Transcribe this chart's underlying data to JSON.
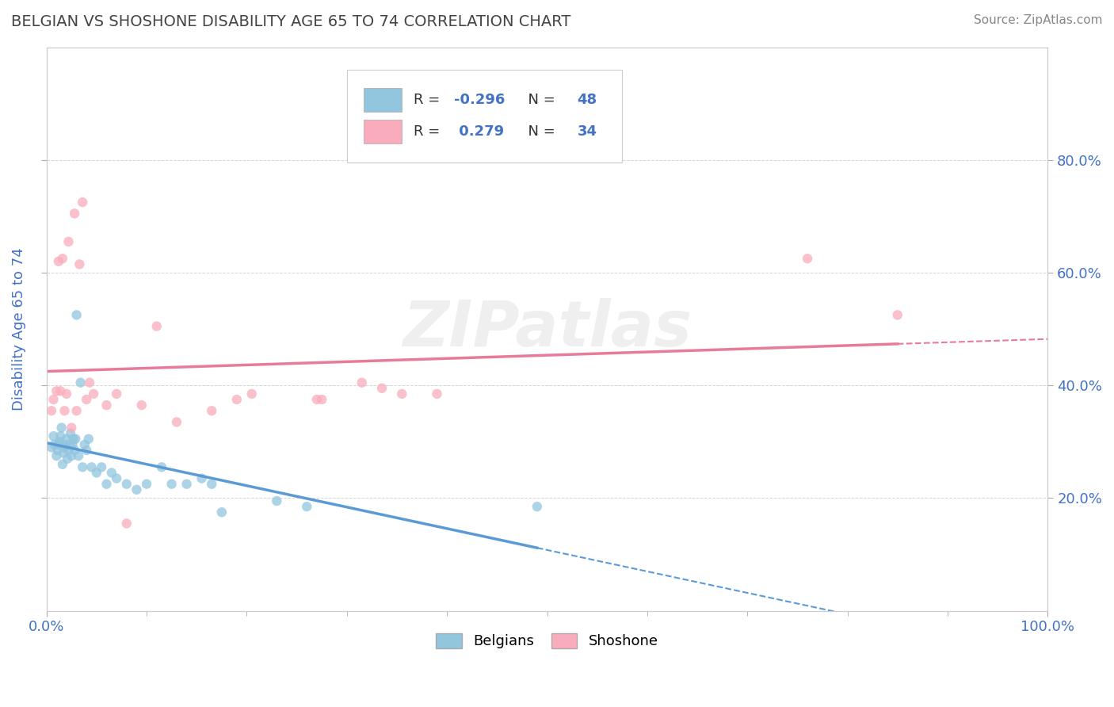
{
  "title": "BELGIAN VS SHOSHONE DISABILITY AGE 65 TO 74 CORRELATION CHART",
  "source_text": "Source: ZipAtlas.com",
  "ylabel": "Disability Age 65 to 74",
  "legend_label1": "Belgians",
  "legend_label2": "Shoshone",
  "color_belgian": "#92C5DE",
  "color_shoshone": "#F9ACBB",
  "color_belgian_line": "#5B9BD5",
  "color_shoshone_line": "#E87B9A",
  "xlim": [
    0.0,
    1.0
  ],
  "ylim": [
    0.0,
    1.0
  ],
  "y_ticks": [
    0.2,
    0.4,
    0.6,
    0.8
  ],
  "y_tick_labels": [
    "20.0%",
    "40.0%",
    "60.0%",
    "80.0%"
  ],
  "x_ticks": [
    0.0,
    1.0
  ],
  "x_tick_labels": [
    "0.0%",
    "100.0%"
  ],
  "belgian_x": [
    0.005,
    0.007,
    0.008,
    0.01,
    0.011,
    0.012,
    0.013,
    0.014,
    0.015,
    0.016,
    0.017,
    0.018,
    0.019,
    0.02,
    0.021,
    0.022,
    0.023,
    0.024,
    0.025,
    0.026,
    0.027,
    0.028,
    0.029,
    0.03,
    0.032,
    0.034,
    0.036,
    0.038,
    0.04,
    0.042,
    0.045,
    0.05,
    0.055,
    0.06,
    0.065,
    0.07,
    0.08,
    0.09,
    0.1,
    0.115,
    0.125,
    0.14,
    0.155,
    0.165,
    0.175,
    0.23,
    0.26,
    0.49
  ],
  "belgian_y": [
    0.29,
    0.31,
    0.295,
    0.275,
    0.285,
    0.295,
    0.3,
    0.31,
    0.325,
    0.26,
    0.28,
    0.29,
    0.295,
    0.305,
    0.27,
    0.285,
    0.295,
    0.315,
    0.275,
    0.295,
    0.305,
    0.285,
    0.305,
    0.525,
    0.275,
    0.405,
    0.255,
    0.295,
    0.285,
    0.305,
    0.255,
    0.245,
    0.255,
    0.225,
    0.245,
    0.235,
    0.225,
    0.215,
    0.225,
    0.255,
    0.225,
    0.225,
    0.235,
    0.225,
    0.175,
    0.195,
    0.185,
    0.185
  ],
  "shoshone_x": [
    0.005,
    0.007,
    0.01,
    0.012,
    0.014,
    0.016,
    0.018,
    0.02,
    0.022,
    0.025,
    0.028,
    0.03,
    0.033,
    0.036,
    0.04,
    0.043,
    0.047,
    0.06,
    0.07,
    0.08,
    0.095,
    0.11,
    0.13,
    0.165,
    0.19,
    0.205,
    0.27,
    0.275,
    0.315,
    0.335,
    0.355,
    0.39,
    0.76,
    0.85
  ],
  "shoshone_y": [
    0.355,
    0.375,
    0.39,
    0.62,
    0.39,
    0.625,
    0.355,
    0.385,
    0.655,
    0.325,
    0.705,
    0.355,
    0.615,
    0.725,
    0.375,
    0.405,
    0.385,
    0.365,
    0.385,
    0.155,
    0.365,
    0.505,
    0.335,
    0.355,
    0.375,
    0.385,
    0.375,
    0.375,
    0.405,
    0.395,
    0.385,
    0.385,
    0.625,
    0.525
  ],
  "watermark_text": "ZIPatlas",
  "watermark_color": "#DDDDDD",
  "background_color": "#FFFFFF",
  "grid_color": "#BBBBBB",
  "title_color": "#444444",
  "tick_color": "#4472C4",
  "ylabel_color": "#4472C4",
  "legend_R1_val": "-0.296",
  "legend_N1_val": "48",
  "legend_R2_val": "0.279",
  "legend_N2_val": "34",
  "legend_color": "#4472C4",
  "legend_label_color": "#333333"
}
